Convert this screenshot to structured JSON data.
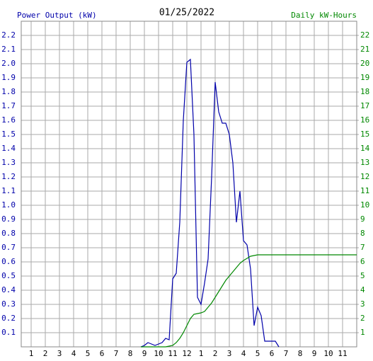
{
  "chart_data": {
    "type": "line",
    "title": "01/25/2022",
    "y_label": "Power Output (kW)",
    "y2_label": "Daily kW-Hours",
    "x": [
      8.75,
      9,
      9.25,
      9.5,
      9.75,
      10,
      10.25,
      10.5,
      10.75,
      11,
      11.25,
      11.5,
      11.75,
      12,
      12.25,
      12.5,
      12.75,
      13,
      13.25,
      13.5,
      13.75,
      14,
      14.25,
      14.5,
      14.75,
      15,
      15.25,
      15.5,
      15.75,
      16,
      16.25,
      16.5,
      16.75,
      17,
      17.25,
      17.5,
      17.75,
      18,
      18.25,
      18.5,
      24
    ],
    "series": [
      {
        "name": "Power Output (kW)",
        "color": "#0000aa",
        "values": [
          0,
          0.01,
          0.03,
          0.02,
          0.01,
          0.02,
          0.03,
          0.06,
          0.05,
          0.48,
          0.52,
          0.88,
          1.6,
          2.01,
          2.03,
          1.5,
          0.35,
          0.3,
          0.45,
          0.62,
          1.2,
          1.87,
          1.66,
          1.58,
          1.58,
          1.5,
          1.3,
          0.88,
          1.1,
          0.75,
          0.72,
          0.55,
          0.15,
          0.28,
          0.22,
          0.04,
          0.04,
          0.04,
          0.04,
          0,
          null
        ]
      },
      {
        "name": "Daily kW-Hours",
        "color": "#008800",
        "axis": "y2",
        "values": [
          0,
          0,
          0,
          0,
          0,
          0,
          0,
          0,
          0.05,
          0.1,
          0.3,
          0.6,
          1.0,
          1.5,
          2.0,
          2.3,
          2.35,
          2.4,
          2.5,
          2.8,
          3.1,
          3.5,
          3.9,
          4.3,
          4.7,
          5.0,
          5.3,
          5.6,
          5.9,
          6.1,
          6.25,
          6.4,
          6.45,
          6.5,
          6.5,
          6.5,
          6.5,
          6.5,
          6.5,
          6.5,
          6.5
        ]
      }
    ],
    "xlim": [
      0.3,
      24
    ],
    "xticks": [
      1,
      2,
      3,
      4,
      5,
      6,
      7,
      8,
      9,
      10,
      11,
      12,
      {
        "value": 13,
        "label": "1"
      },
      {
        "value": 14,
        "label": "2"
      },
      {
        "value": 15,
        "label": "3"
      },
      {
        "value": 16,
        "label": "4"
      },
      {
        "value": 17,
        "label": "5"
      },
      {
        "value": 18,
        "label": "6"
      },
      {
        "value": 19,
        "label": "7"
      },
      {
        "value": 20,
        "label": "8"
      },
      {
        "value": 21,
        "label": "9"
      },
      {
        "value": 22,
        "label": "10"
      },
      {
        "value": 23,
        "label": "11"
      }
    ],
    "ylim": [
      0,
      2.3
    ],
    "yticks": [
      0.1,
      0.2,
      0.3,
      0.4,
      0.5,
      0.6,
      0.7,
      0.8,
      0.9,
      {
        "value": 1,
        "label": "1.0"
      },
      1.1,
      1.2,
      1.3,
      1.4,
      1.5,
      1.6,
      1.7,
      1.8,
      1.9,
      {
        "value": 2,
        "label": "2.0"
      },
      2.1,
      2.2
    ],
    "y2lim": [
      0,
      23
    ],
    "y2ticks": [
      1,
      2,
      3,
      4,
      5,
      6,
      7,
      8,
      9,
      10,
      11,
      12,
      13,
      14,
      15,
      16,
      17,
      18,
      19,
      20,
      21,
      22
    ],
    "grid": true
  }
}
